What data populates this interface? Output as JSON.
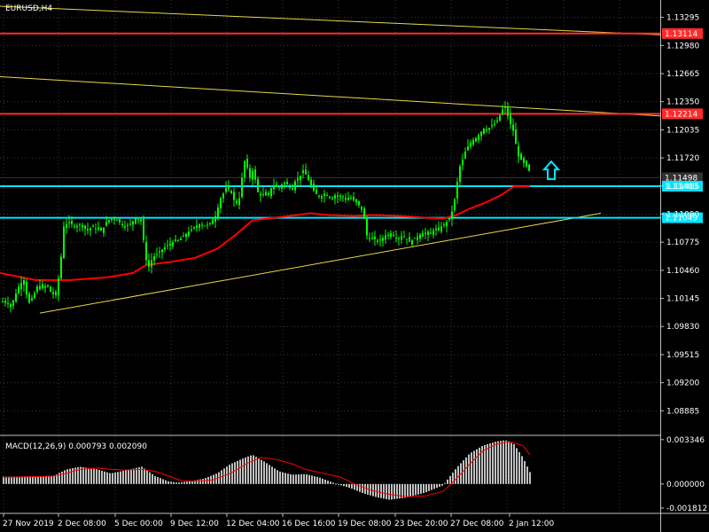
{
  "window": {
    "symbol_label": "EURUSD,H4",
    "indicator_label": "MACD(12,26,9) 0.000793 0.002090"
  },
  "colors": {
    "background": "#000000",
    "grid": "#3a3a3a",
    "candle": "#00ff00",
    "ma_line": "#ff0000",
    "resistance": "#ff2a2a",
    "support": "#00e5ff",
    "trendline": "#e6d84a",
    "macd_hist": "#c0c0c0",
    "signal": "#ff0000",
    "arrow": "#00e5ff",
    "text": "#ffffff"
  },
  "icons": {
    "signal_arrow": "up-arrow-icon"
  },
  "chart_data": [
    {
      "type": "candlestick",
      "title": "EURUSD,H4",
      "x_ticks": [
        "27 Nov 2019",
        "2 Dec 08:00",
        "5 Dec 00:00",
        "9 Dec 12:00",
        "12 Dec 04:00",
        "16 Dec 16:00",
        "19 Dec 08:00",
        "23 Dec 20:00",
        "27 Dec 08:00",
        "2 Jan 12:00"
      ],
      "y_ticks": [
        "1.13295",
        "1.12980",
        "1.12665",
        "1.12350",
        "1.12035",
        "1.11720",
        "1.11405",
        "1.11090",
        "1.10775",
        "1.10460",
        "1.10145",
        "1.09830",
        "1.09515",
        "1.09200",
        "1.08885"
      ],
      "ylim": [
        1.0862,
        1.1345
      ],
      "price_levels": [
        {
          "label": "1.13114",
          "value": 1.13114,
          "color": "#ff2a2a"
        },
        {
          "label": "1.12214",
          "value": 1.12214,
          "color": "#ff2a2a"
        },
        {
          "label": "1.11498",
          "value": 1.11498,
          "color": "#333333"
        },
        {
          "label": "1.11403",
          "value": 1.11403,
          "color": "#00e5ff"
        },
        {
          "label": "1.11049",
          "value": 1.11049,
          "color": "#00e5ff"
        }
      ],
      "close_path": [
        [
          0,
          1.101
        ],
        [
          6,
          1.1012
        ],
        [
          12,
          1.1005
        ],
        [
          18,
          1.102
        ],
        [
          22,
          1.103
        ],
        [
          27,
          1.1035
        ],
        [
          32,
          1.1008
        ],
        [
          38,
          1.1018
        ],
        [
          43,
          1.103
        ],
        [
          48,
          1.1026
        ],
        [
          53,
          1.103
        ],
        [
          58,
          1.102
        ],
        [
          63,
          1.1018
        ],
        [
          68,
          1.105
        ],
        [
          72,
          1.1095
        ],
        [
          78,
          1.11
        ],
        [
          85,
          1.1095
        ],
        [
          92,
          1.1098
        ],
        [
          98,
          1.109
        ],
        [
          104,
          1.1095
        ],
        [
          110,
          1.1092
        ],
        [
          115,
          1.109
        ],
        [
          120,
          1.11
        ],
        [
          126,
          1.1105
        ],
        [
          133,
          1.1102
        ],
        [
          140,
          1.1095
        ],
        [
          147,
          1.1098
        ],
        [
          154,
          1.1105
        ],
        [
          160,
          1.11
        ],
        [
          164,
          1.106
        ],
        [
          168,
          1.105
        ],
        [
          172,
          1.106
        ],
        [
          178,
          1.1065
        ],
        [
          184,
          1.107
        ],
        [
          190,
          1.1075
        ],
        [
          196,
          1.1078
        ],
        [
          202,
          1.108
        ],
        [
          208,
          1.1085
        ],
        [
          214,
          1.109
        ],
        [
          220,
          1.1095
        ],
        [
          226,
          1.1098
        ],
        [
          232,
          1.1095
        ],
        [
          238,
          1.11
        ],
        [
          244,
          1.1108
        ],
        [
          248,
          1.1125
        ],
        [
          252,
          1.1132
        ],
        [
          256,
          1.114
        ],
        [
          260,
          1.1135
        ],
        [
          264,
          1.1125
        ],
        [
          268,
          1.112
        ],
        [
          271,
          1.113
        ],
        [
          275,
          1.117
        ],
        [
          278,
          1.1165
        ],
        [
          282,
          1.115
        ],
        [
          286,
          1.116
        ],
        [
          290,
          1.1135
        ],
        [
          294,
          1.113
        ],
        [
          298,
          1.1132
        ],
        [
          302,
          1.1128
        ],
        [
          306,
          1.1138
        ],
        [
          310,
          1.1142
        ],
        [
          314,
          1.1138
        ],
        [
          318,
          1.1142
        ],
        [
          322,
          1.1145
        ],
        [
          326,
          1.114
        ],
        [
          330,
          1.1138
        ],
        [
          334,
          1.1148
        ],
        [
          338,
          1.115
        ],
        [
          342,
          1.1158
        ],
        [
          346,
          1.1152
        ],
        [
          350,
          1.1142
        ],
        [
          354,
          1.1135
        ],
        [
          358,
          1.113
        ],
        [
          362,
          1.1128
        ],
        [
          366,
          1.1132
        ],
        [
          370,
          1.113
        ],
        [
          374,
          1.1126
        ],
        [
          378,
          1.113
        ],
        [
          382,
          1.1128
        ],
        [
          386,
          1.113
        ],
        [
          390,
          1.1125
        ],
        [
          394,
          1.1128
        ],
        [
          398,
          1.1125
        ],
        [
          402,
          1.1122
        ],
        [
          406,
          1.1118
        ],
        [
          410,
          1.111
        ],
        [
          414,
          1.1085
        ],
        [
          418,
          1.108
        ],
        [
          422,
          1.1082
        ],
        [
          426,
          1.1078
        ],
        [
          430,
          1.108
        ],
        [
          434,
          1.1085
        ],
        [
          438,
          1.1086
        ],
        [
          442,
          1.1088
        ],
        [
          446,
          1.1083
        ],
        [
          450,
          1.1082
        ],
        [
          454,
          1.1085
        ],
        [
          458,
          1.1082
        ],
        [
          462,
          1.1078
        ],
        [
          466,
          1.108
        ],
        [
          470,
          1.1083
        ],
        [
          474,
          1.1086
        ],
        [
          478,
          1.1088
        ],
        [
          482,
          1.1085
        ],
        [
          486,
          1.1088
        ],
        [
          490,
          1.1092
        ],
        [
          494,
          1.109
        ],
        [
          498,
          1.1095
        ],
        [
          502,
          1.1098
        ],
        [
          506,
          1.1102
        ],
        [
          510,
          1.1112
        ],
        [
          514,
          1.113
        ],
        [
          518,
          1.116
        ],
        [
          522,
          1.117
        ],
        [
          526,
          1.1182
        ],
        [
          530,
          1.1188
        ],
        [
          534,
          1.1192
        ],
        [
          538,
          1.1195
        ],
        [
          542,
          1.12
        ],
        [
          546,
          1.1205
        ],
        [
          550,
          1.1203
        ],
        [
          554,
          1.1208
        ],
        [
          558,
          1.121
        ],
        [
          562,
          1.1215
        ],
        [
          566,
          1.1225
        ],
        [
          570,
          1.123
        ],
        [
          574,
          1.1215
        ],
        [
          578,
          1.1205
        ],
        [
          580,
          1.12
        ],
        [
          584,
          1.1175
        ],
        [
          588,
          1.117
        ],
        [
          592,
          1.1165
        ],
        [
          596,
          1.116
        ],
        [
          598,
          1.1155
        ]
      ],
      "ma_path": [
        [
          0,
          1.1043
        ],
        [
          40,
          1.1035
        ],
        [
          80,
          1.1035
        ],
        [
          120,
          1.1038
        ],
        [
          150,
          1.1043
        ],
        [
          165,
          1.1052
        ],
        [
          190,
          1.1055
        ],
        [
          220,
          1.106
        ],
        [
          245,
          1.107
        ],
        [
          265,
          1.1085
        ],
        [
          285,
          1.1102
        ],
        [
          310,
          1.1105
        ],
        [
          335,
          1.1108
        ],
        [
          350,
          1.111
        ],
        [
          370,
          1.1108
        ],
        [
          400,
          1.1107
        ],
        [
          420,
          1.1108
        ],
        [
          450,
          1.1107
        ],
        [
          480,
          1.1105
        ],
        [
          500,
          1.1104
        ],
        [
          515,
          1.1108
        ],
        [
          530,
          1.1115
        ],
        [
          548,
          1.1122
        ],
        [
          565,
          1.113
        ],
        [
          580,
          1.114
        ],
        [
          598,
          1.114
        ]
      ],
      "trendlines": [
        {
          "kind": "support",
          "from": [
            45,
            1.0998
          ],
          "to": [
            678,
            1.111
          ]
        },
        {
          "kind": "resistance",
          "from": [
            0,
            1.1263
          ],
          "to": [
            745,
            1.1219
          ]
        },
        {
          "kind": "resistance",
          "from": [
            0,
            1.1342
          ],
          "to": [
            745,
            1.131
          ]
        }
      ],
      "signal_arrow": {
        "x": 622,
        "value": 1.1158,
        "direction": "up"
      }
    },
    {
      "type": "bar",
      "title": "MACD(12,26,9) 0.000793 0.002090",
      "y_ticks": [
        "0.003346",
        "0.000000",
        "-0.001812"
      ],
      "ylim": [
        -0.00215,
        0.0036
      ],
      "histogram_samples": [
        [
          4,
          0.00055
        ],
        [
          60,
          0.0006
        ],
        [
          75,
          0.0011
        ],
        [
          90,
          0.0013
        ],
        [
          110,
          0.0011
        ],
        [
          125,
          0.0008
        ],
        [
          140,
          0.001
        ],
        [
          160,
          0.0013
        ],
        [
          175,
          0.0006
        ],
        [
          190,
          0.0002
        ],
        [
          200,
          0.0001
        ],
        [
          215,
          0.0002
        ],
        [
          230,
          0.0004
        ],
        [
          245,
          0.0008
        ],
        [
          260,
          0.0015
        ],
        [
          275,
          0.00195
        ],
        [
          285,
          0.0022
        ],
        [
          298,
          0.0017
        ],
        [
          315,
          0.00095
        ],
        [
          330,
          0.0007
        ],
        [
          345,
          0.00075
        ],
        [
          360,
          0.0005
        ],
        [
          380,
          0.0
        ],
        [
          395,
          -0.0003
        ],
        [
          410,
          -0.0007
        ],
        [
          425,
          -0.001
        ],
        [
          440,
          -0.0012
        ],
        [
          460,
          -0.001
        ],
        [
          480,
          -0.00065
        ],
        [
          500,
          -0.0001
        ],
        [
          515,
          0.0012
        ],
        [
          530,
          0.0023
        ],
        [
          545,
          0.0029
        ],
        [
          560,
          0.0032
        ],
        [
          570,
          0.0033
        ],
        [
          580,
          0.003
        ],
        [
          590,
          0.002
        ],
        [
          598,
          0.0009
        ]
      ],
      "signal_path": [
        [
          4,
          0.0005
        ],
        [
          40,
          0.00055
        ],
        [
          60,
          0.0006
        ],
        [
          75,
          0.0008
        ],
        [
          90,
          0.0011
        ],
        [
          110,
          0.0012
        ],
        [
          125,
          0.0011
        ],
        [
          140,
          0.00105
        ],
        [
          160,
          0.0011
        ],
        [
          175,
          0.00095
        ],
        [
          190,
          0.0006
        ],
        [
          205,
          0.00025
        ],
        [
          220,
          0.0002
        ],
        [
          240,
          0.0003
        ],
        [
          260,
          0.0008
        ],
        [
          280,
          0.0016
        ],
        [
          295,
          0.002
        ],
        [
          315,
          0.0018
        ],
        [
          330,
          0.0015
        ],
        [
          345,
          0.0011
        ],
        [
          365,
          0.0008
        ],
        [
          385,
          0.0005
        ],
        [
          400,
          0.0
        ],
        [
          420,
          -0.0005
        ],
        [
          440,
          -0.0008
        ],
        [
          460,
          -0.00095
        ],
        [
          480,
          -0.0009
        ],
        [
          500,
          -0.00055
        ],
        [
          515,
          0.0004
        ],
        [
          530,
          0.0015
        ],
        [
          545,
          0.0025
        ],
        [
          560,
          0.003
        ],
        [
          575,
          0.0032
        ],
        [
          590,
          0.0029
        ],
        [
          598,
          0.0022
        ]
      ]
    }
  ]
}
